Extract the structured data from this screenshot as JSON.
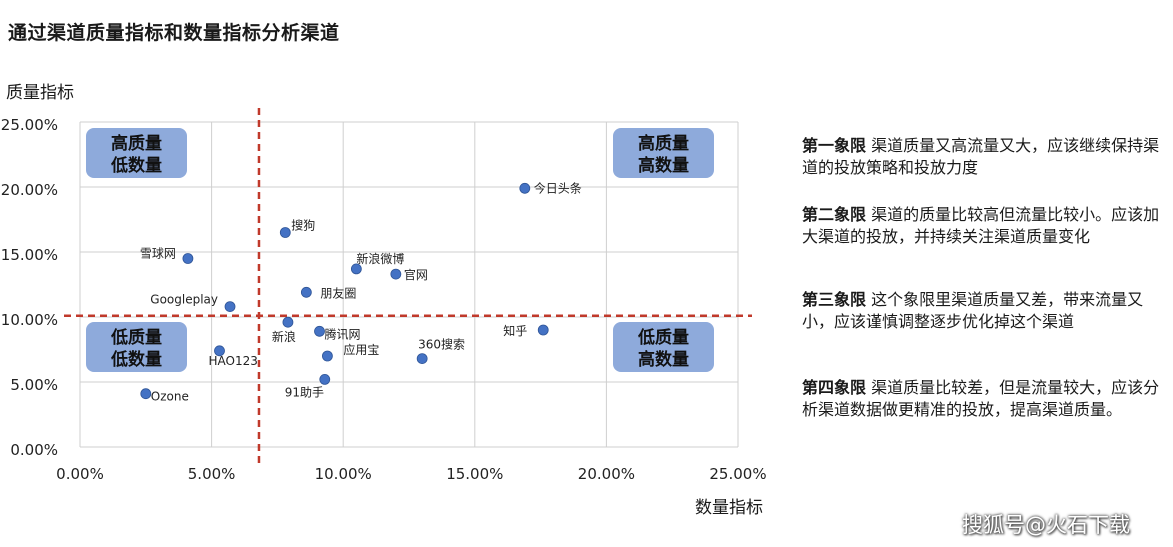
{
  "chart_data": {
    "type": "scatter",
    "title": "通过渠道质量指标和数量指标分析渠道",
    "xlabel": "数量指标",
    "ylabel": "质量指标",
    "xlim": [
      0,
      0.25
    ],
    "ylim": [
      0,
      0.25
    ],
    "x_ticks": [
      "0.00%",
      "5.00%",
      "10.00%",
      "15.00%",
      "20.00%",
      "25.00%"
    ],
    "y_ticks": [
      "0.00%",
      "5.00%",
      "10.00%",
      "15.00%",
      "20.00%",
      "25.00%"
    ],
    "grid": true,
    "point_color": "#4472c4",
    "divider_color": "#c0392b",
    "divider_x": 0.068,
    "divider_y": 0.101,
    "points": [
      {
        "label": "今日头条",
        "x": 0.169,
        "y": 0.199
      },
      {
        "label": "搜狗",
        "x": 0.078,
        "y": 0.165
      },
      {
        "label": "雪球网",
        "x": 0.041,
        "y": 0.145
      },
      {
        "label": "新浪微博",
        "x": 0.105,
        "y": 0.137
      },
      {
        "label": "官网",
        "x": 0.12,
        "y": 0.133
      },
      {
        "label": "朋友圈",
        "x": 0.086,
        "y": 0.119
      },
      {
        "label": "Googleplay",
        "x": 0.057,
        "y": 0.108
      },
      {
        "label": "新浪",
        "x": 0.079,
        "y": 0.096
      },
      {
        "label": "腾讯网",
        "x": 0.091,
        "y": 0.089
      },
      {
        "label": "知乎",
        "x": 0.176,
        "y": 0.09
      },
      {
        "label": "HAO123",
        "x": 0.053,
        "y": 0.074
      },
      {
        "label": "应用宝",
        "x": 0.094,
        "y": 0.07
      },
      {
        "label": "360搜索",
        "x": 0.13,
        "y": 0.068
      },
      {
        "label": "91助手",
        "x": 0.093,
        "y": 0.052
      },
      {
        "label": "Ozone",
        "x": 0.025,
        "y": 0.041
      }
    ],
    "quadrant_boxes": [
      {
        "name": "quadrant-box-high-quality-low-quantity",
        "line1": "高质量",
        "line2": "低数量"
      },
      {
        "name": "quadrant-box-high-quality-high-quantity",
        "line1": "高质量",
        "line2": "高数量"
      },
      {
        "name": "quadrant-box-low-quality-low-quantity",
        "line1": "低质量",
        "line2": "低数量"
      },
      {
        "name": "quadrant-box-low-quality-high-quantity",
        "line1": "低质量",
        "line2": "高数量"
      }
    ]
  },
  "descriptions": [
    {
      "head": "第一象限",
      "text": " 渠道质量又高流量又大，应该继续保持渠道的投放策略和投放力度"
    },
    {
      "head": "第二象限",
      "text": " 渠道的质量比较高但流量比较小。应该加大渠道的投放，并持续关注渠道质量变化"
    },
    {
      "head": "第三象限",
      "text": " 这个象限里渠道质量又差，带来流量又小，应该谨慎调整逐步优化掉这个渠道"
    },
    {
      "head": "第四象限",
      "text": " 渠道质量比较差，但是流量较大，应该分析渠道数据做更精准的投放，提高渠道质量。"
    }
  ],
  "watermark": "搜狐号@火石下载"
}
